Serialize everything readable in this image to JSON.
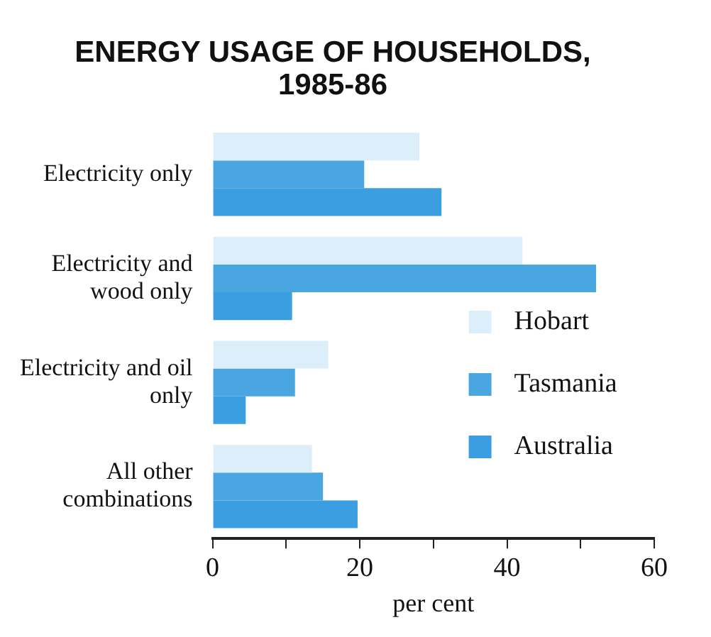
{
  "chart_data": {
    "type": "bar",
    "orientation": "horizontal",
    "title": "ENERGY USAGE OF HOUSEHOLDS,\n1985-86",
    "xlabel": "per cent",
    "categories": [
      "Electricity only",
      "Electricity and wood only",
      "Electricity and oil only",
      "All other combinations"
    ],
    "series": [
      {
        "name": "Hobart",
        "color": "#dbeef9",
        "values": [
          28.1,
          42.1,
          15.7,
          13.5
        ]
      },
      {
        "name": "Tasmania",
        "color": "#4aa6e0",
        "values": [
          20.6,
          52.1,
          11.2,
          15.0
        ]
      },
      {
        "name": "Australia",
        "color": "#3a9ee0",
        "values": [
          31.1,
          10.8,
          4.5,
          19.7
        ]
      }
    ],
    "xlim": [
      0,
      60
    ],
    "xticks": [
      0,
      {
        "value": 10,
        "label": null
      },
      20,
      {
        "value": 30,
        "label": null
      },
      40,
      {
        "value": 50,
        "label": null
      },
      60
    ],
    "grid": false,
    "legend": "right"
  }
}
